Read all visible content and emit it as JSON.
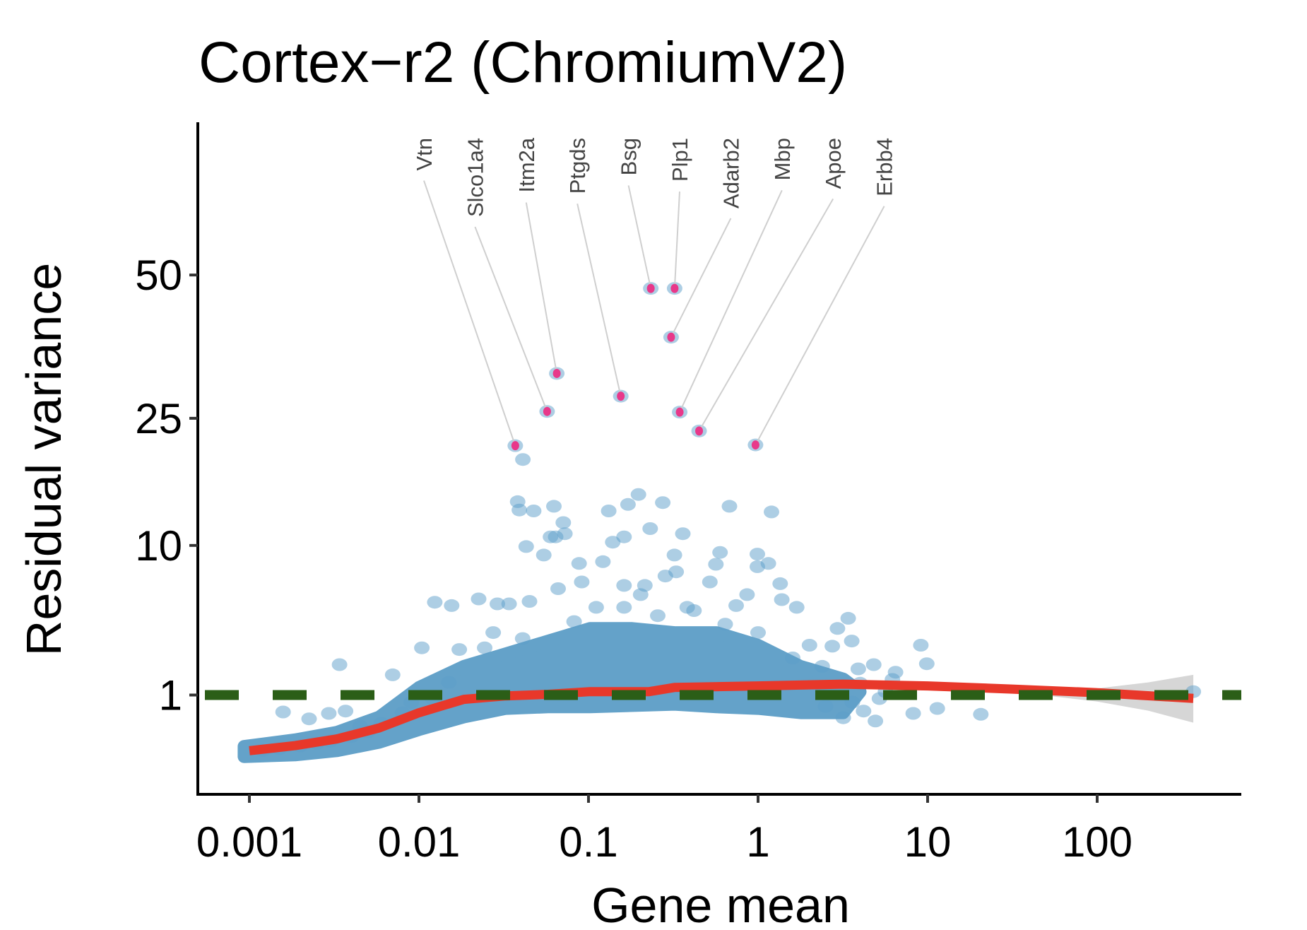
{
  "chart_data": {
    "type": "scatter",
    "title": "Cortex−r2 (ChromiumV2)",
    "xlabel": "Gene mean",
    "ylabel": "Residual variance",
    "x_scale": "log10",
    "y_scale": "sqrt",
    "x_ticks": [
      0.001,
      0.01,
      0.1,
      1,
      10,
      100
    ],
    "x_tick_labels": [
      "0.001",
      "0.01",
      "0.1",
      "1",
      "10",
      "100"
    ],
    "y_ticks": [
      1,
      10,
      25,
      50
    ],
    "y_tick_labels": [
      "1",
      "10",
      "25",
      "50"
    ],
    "grid": false,
    "legend": "none",
    "colors": {
      "points": "#5b9ec9",
      "dense_core": "#5fa0c8",
      "highlight": "#e8388a",
      "trend": "#e8382a",
      "confidence_band": "#d6d6d6",
      "reference_line": "#2b5e17",
      "label_segment": "#cfcfcf",
      "label_text": "#444444"
    },
    "reference_line": {
      "y": 1,
      "style": "dashed"
    },
    "dense_core": {
      "upper": [
        [
          0.00093,
          0.066
        ],
        [
          0.00186,
          0.125
        ],
        [
          0.00329,
          0.214
        ],
        [
          0.00583,
          0.466
        ],
        [
          0.01,
          1.23
        ],
        [
          0.0184,
          2.0
        ],
        [
          0.0325,
          2.55
        ],
        [
          0.0577,
          3.17
        ],
        [
          0.102,
          3.85
        ],
        [
          0.181,
          3.85
        ],
        [
          0.321,
          3.62
        ],
        [
          0.569,
          3.62
        ],
        [
          1.0,
          2.96
        ],
        [
          1.78,
          2.0
        ],
        [
          3.18,
          1.52
        ],
        [
          4.0,
          1.1
        ]
      ],
      "lower": [
        [
          4.0,
          1.1
        ],
        [
          3.18,
          0.553
        ],
        [
          1.78,
          0.553
        ],
        [
          1.0,
          0.648
        ],
        [
          0.569,
          0.687
        ],
        [
          0.321,
          0.75
        ],
        [
          0.102,
          0.687
        ],
        [
          0.0577,
          0.687
        ],
        [
          0.0325,
          0.648
        ],
        [
          0.0184,
          0.466
        ],
        [
          0.01,
          0.25
        ],
        [
          0.00583,
          0.1
        ],
        [
          0.00329,
          0.038
        ],
        [
          0.00186,
          0.018
        ],
        [
          0.00093,
          0.012
        ]
      ]
    },
    "points": [
      [
        0.0034,
        2.07
      ],
      [
        0.00158,
        0.57
      ],
      [
        0.00225,
        0.43
      ],
      [
        0.00294,
        0.54
      ],
      [
        0.00369,
        0.59
      ],
      [
        0.0104,
        2.83
      ],
      [
        0.007,
        1.67
      ],
      [
        0.0124,
        5.48
      ],
      [
        0.0156,
        5.26
      ],
      [
        0.0225,
        5.71
      ],
      [
        0.029,
        5.37
      ],
      [
        0.034,
        5.37
      ],
      [
        0.0274,
        3.62
      ],
      [
        0.0244,
        2.83
      ],
      [
        0.0173,
        2.75
      ],
      [
        0.0409,
        3.3
      ],
      [
        0.0449,
        5.54
      ],
      [
        0.0382,
        14.4
      ],
      [
        0.0391,
        13.5
      ],
      [
        0.0475,
        13.4
      ],
      [
        0.0625,
        13.9
      ],
      [
        0.0429,
        9.9
      ],
      [
        0.0545,
        9.14
      ],
      [
        0.064,
        10.8
      ],
      [
        0.071,
        12.2
      ],
      [
        0.0726,
        11.1
      ],
      [
        0.0597,
        10.8
      ],
      [
        0.088,
        8.42
      ],
      [
        0.0662,
        6.44
      ],
      [
        0.0912,
        6.94
      ],
      [
        0.1216,
        8.57
      ],
      [
        0.1316,
        13.4
      ],
      [
        0.162,
        10.8
      ],
      [
        0.139,
        10.3
      ],
      [
        0.171,
        14.1
      ],
      [
        0.197,
        15.2
      ],
      [
        0.274,
        14.3
      ],
      [
        0.231,
        11.6
      ],
      [
        0.36,
        11.1
      ],
      [
        0.321,
        9.14
      ],
      [
        0.329,
        7.73
      ],
      [
        0.284,
        7.4
      ],
      [
        0.162,
        6.68
      ],
      [
        0.215,
        6.68
      ],
      [
        0.382,
        5.14
      ],
      [
        0.419,
        4.93
      ],
      [
        0.597,
        9.37
      ],
      [
        0.564,
        8.35
      ],
      [
        0.52,
        6.94
      ],
      [
        0.678,
        13.9
      ],
      [
        1.2,
        13.3
      ],
      [
        0.99,
        9.22
      ],
      [
        1.15,
        8.42
      ],
      [
        1.35,
        6.81
      ],
      [
        0.99,
        8.15
      ],
      [
        0.861,
        6.01
      ],
      [
        0.743,
        5.26
      ],
      [
        1.38,
        5.66
      ],
      [
        1.69,
        5.14
      ],
      [
        3.4,
        4.45
      ],
      [
        2.94,
        3.85
      ],
      [
        2.74,
        2.91
      ],
      [
        3.57,
        3.17
      ],
      [
        9.12,
        2.96
      ],
      [
        9.89,
        2.11
      ],
      [
        6.47,
        1.77
      ],
      [
        4.81,
        2.07
      ],
      [
        3.18,
        0.45
      ],
      [
        4.92,
        0.39
      ],
      [
        8.22,
        0.54
      ],
      [
        20.6,
        0.52
      ],
      [
        11.4,
        0.65
      ],
      [
        4.19,
        0.59
      ],
      [
        369,
        1.1
      ],
      [
        0.0822,
        4.25
      ],
      [
        0.111,
        5.14
      ],
      [
        0.162,
        5.14
      ],
      [
        0.203,
        6.01
      ],
      [
        0.256,
        4.61
      ],
      [
        0.64,
        4.1
      ],
      [
        1.0,
        3.62
      ],
      [
        2.01,
        2.96
      ],
      [
        1.6,
        2.36
      ],
      [
        5.64,
        1.1
      ],
      [
        4.0,
        1.37
      ],
      [
        2.39,
        2.0
      ],
      [
        0.041,
        19.4
      ],
      [
        0.0012,
        0.04
      ],
      [
        0.0015,
        0.05
      ],
      [
        0.002,
        0.07
      ],
      [
        0.0025,
        0.09
      ],
      [
        0.003,
        0.11
      ],
      [
        0.004,
        0.16
      ],
      [
        0.005,
        0.22
      ],
      [
        0.0045,
        0.3
      ],
      [
        0.006,
        0.35
      ],
      [
        0.008,
        0.55
      ],
      [
        0.009,
        0.8
      ],
      [
        0.012,
        0.9
      ],
      [
        0.015,
        1.4
      ],
      [
        3.6,
        0.8
      ],
      [
        2.5,
        0.7
      ],
      [
        5.2,
        0.9
      ],
      [
        6.2,
        1.5
      ],
      [
        3.9,
        1.9
      ]
    ],
    "highlighted_genes": [
      {
        "gene": "Vtn",
        "x": 0.037,
        "y": 21.2
      },
      {
        "gene": "Slco1a4",
        "x": 0.057,
        "y": 26.0
      },
      {
        "gene": "Itm2a",
        "x": 0.065,
        "y": 31.9
      },
      {
        "gene": "Ptgds",
        "x": 0.155,
        "y": 28.3
      },
      {
        "gene": "Bsg",
        "x": 0.233,
        "y": 47.3
      },
      {
        "gene": "Plp1",
        "x": 0.322,
        "y": 47.3
      },
      {
        "gene": "Adarb2",
        "x": 0.307,
        "y": 38.1
      },
      {
        "gene": "Mbp",
        "x": 0.345,
        "y": 25.9
      },
      {
        "gene": "Apoe",
        "x": 0.449,
        "y": 23.2
      },
      {
        "gene": "Erbb4",
        "x": 0.966,
        "y": 21.3
      }
    ],
    "trend": [
      [
        0.001,
        0.038
      ],
      [
        0.00186,
        0.072
      ],
      [
        0.00329,
        0.134
      ],
      [
        0.00583,
        0.275
      ],
      [
        0.01,
        0.553
      ],
      [
        0.0184,
        0.88
      ],
      [
        0.0325,
        0.976
      ],
      [
        0.0577,
        1.02
      ],
      [
        0.102,
        1.1
      ],
      [
        0.228,
        1.1
      ],
      [
        0.321,
        1.23
      ],
      [
        1.0,
        1.28
      ],
      [
        3.18,
        1.34
      ],
      [
        10,
        1.28
      ],
      [
        31.5,
        1.18
      ],
      [
        98.9,
        1.07
      ],
      [
        369,
        0.905
      ]
    ],
    "confidence_band": [
      [
        5,
        1.33,
        1.35
      ],
      [
        10,
        1.26,
        1.3
      ],
      [
        31.5,
        1.1,
        1.26
      ],
      [
        100,
        0.82,
        1.2
      ],
      [
        200,
        0.6,
        1.4
      ],
      [
        369,
        0.36,
        1.67
      ]
    ]
  }
}
